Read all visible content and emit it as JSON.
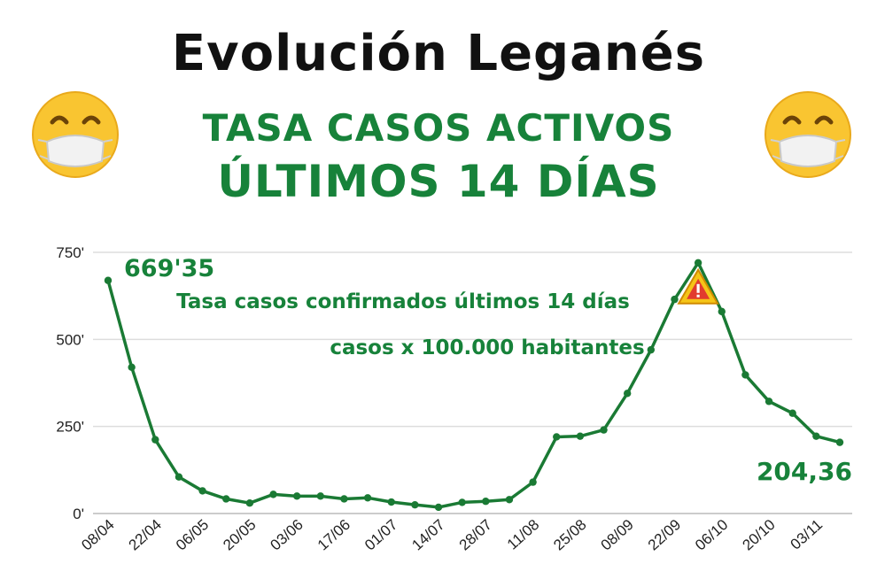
{
  "header": {
    "title": "Evolución Leganés",
    "subtitle_line1": "TASA CASOS ACTIVOS",
    "subtitle_line2": "ÚLTIMOS 14 DÍAS"
  },
  "icons": {
    "left": "face-with-medical-mask-icon",
    "right": "face-with-medical-mask-icon",
    "warning": "warning-triangle-icon"
  },
  "colors": {
    "accent": "#17823a",
    "line": "#1a7a34",
    "title": "#111111",
    "warning": "#f5c518"
  },
  "chart_data": {
    "type": "line",
    "ylabel": "",
    "xlabel": "",
    "ylim": [
      0,
      750
    ],
    "yticks": [
      {
        "value": 0,
        "label": "0'"
      },
      {
        "value": 250,
        "label": "250'"
      },
      {
        "value": 500,
        "label": "500'"
      },
      {
        "value": 750,
        "label": "750'"
      }
    ],
    "grid": true,
    "x_tick_labels": [
      "08/04",
      "22/04",
      "06/05",
      "20/05",
      "03/06",
      "17/06",
      "01/07",
      "14/07",
      "28/07",
      "11/08",
      "25/08",
      "08/09",
      "22/09",
      "06/10",
      "20/10",
      "03/11"
    ],
    "x_tick_index": [
      0,
      2,
      4,
      6,
      8,
      10,
      12,
      14,
      16,
      18,
      20,
      22,
      24,
      26,
      28,
      30
    ],
    "series": [
      {
        "values": [
          669.35,
          420,
          212,
          105,
          65,
          42,
          30,
          55,
          50,
          50,
          42,
          45,
          33,
          25,
          18,
          32,
          35,
          40,
          90,
          220,
          222,
          240,
          345,
          470,
          615,
          720,
          580,
          398,
          322,
          288,
          222,
          204.36
        ]
      }
    ],
    "annotations": {
      "first_value": "669'35",
      "last_value": "204,36",
      "legend_line1": "Tasa casos confirmados últimos 14 días",
      "legend_line2": "casos x 100.000 habitantes"
    }
  }
}
